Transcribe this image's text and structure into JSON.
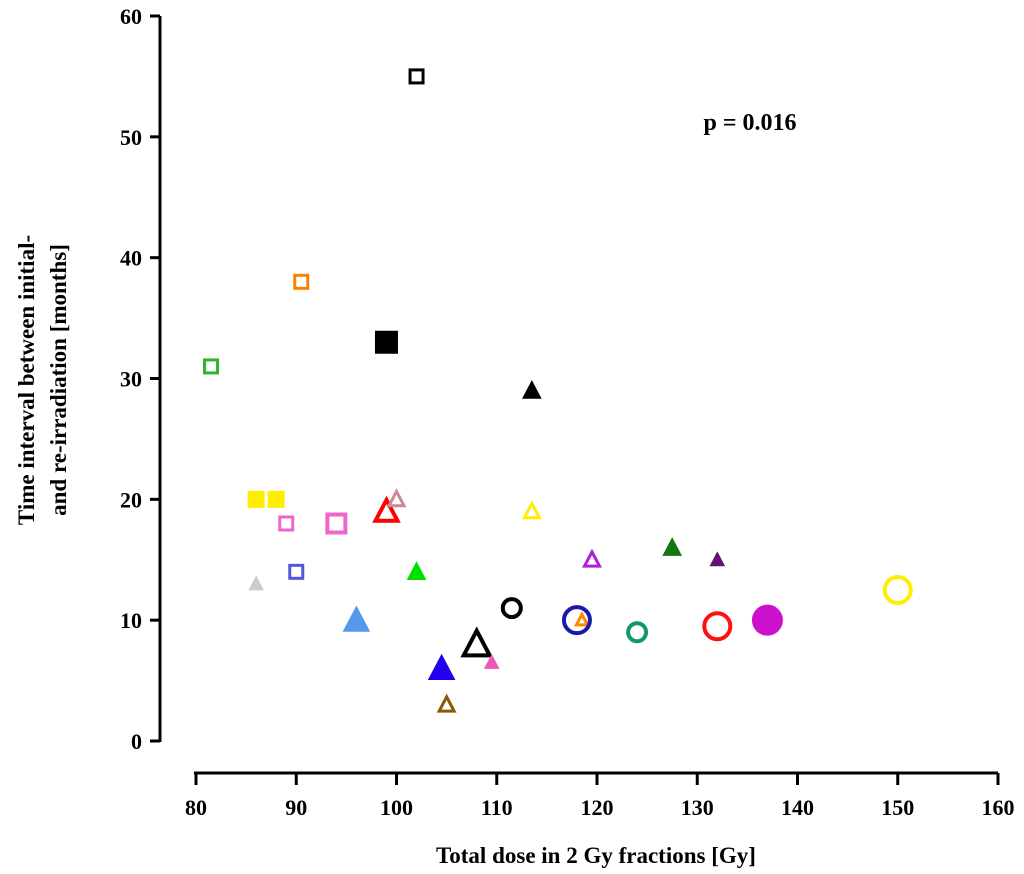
{
  "chart_data": {
    "type": "scatter",
    "title": "",
    "xlabel": "Total dose in 2 Gy fractions [Gy]",
    "ylabel_lines": [
      "Time interval between initial-",
      "and re-irradiation [months]"
    ],
    "xlim": [
      80,
      160
    ],
    "ylim": [
      0,
      60
    ],
    "x_ticks": [
      "80",
      "90",
      "100",
      "110",
      "120",
      "130",
      "140",
      "150",
      "160"
    ],
    "y_ticks": [
      "0",
      "10",
      "20",
      "30",
      "40",
      "50",
      "60"
    ],
    "grid": false,
    "legend": "none",
    "annotation": "p = 0.016",
    "points": [
      {
        "x": 102.0,
        "y": 55.0,
        "shape": "square",
        "fill": false,
        "color": "#000000",
        "size": "medium"
      },
      {
        "x": 90.5,
        "y": 38.0,
        "shape": "square",
        "fill": false,
        "color": "#ff7f00",
        "size": "medium"
      },
      {
        "x": 99.0,
        "y": 33.0,
        "shape": "square",
        "fill": true,
        "color": "#000000",
        "size": "large"
      },
      {
        "x": 81.5,
        "y": 31.0,
        "shape": "square",
        "fill": false,
        "color": "#2db52d",
        "size": "medium"
      },
      {
        "x": 86.0,
        "y": 20.0,
        "shape": "square",
        "fill": true,
        "color": "#ffee00",
        "size": "medium"
      },
      {
        "x": 88.0,
        "y": 20.0,
        "shape": "square",
        "fill": true,
        "color": "#ffee00",
        "size": "medium"
      },
      {
        "x": 89.0,
        "y": 18.0,
        "shape": "square",
        "fill": false,
        "color": "#ee66cc",
        "size": "medium"
      },
      {
        "x": 94.0,
        "y": 18.0,
        "shape": "square",
        "fill": false,
        "color": "#ee66cc",
        "size": "large"
      },
      {
        "x": 90.0,
        "y": 14.0,
        "shape": "square",
        "fill": false,
        "color": "#5555dd",
        "size": "medium"
      },
      {
        "x": 86.0,
        "y": 13.0,
        "shape": "triangle",
        "fill": true,
        "color": "#cccccc",
        "size": "small"
      },
      {
        "x": 96.0,
        "y": 10.0,
        "shape": "triangle",
        "fill": true,
        "color": "#5599ee",
        "size": "large"
      },
      {
        "x": 99.0,
        "y": 19.0,
        "shape": "triangle",
        "fill": false,
        "color": "#ff0000",
        "size": "large"
      },
      {
        "x": 100.0,
        "y": 20.0,
        "shape": "triangle",
        "fill": false,
        "color": "#cc8899",
        "size": "medium"
      },
      {
        "x": 102.0,
        "y": 14.0,
        "shape": "triangle",
        "fill": true,
        "color": "#00e000",
        "size": "medium"
      },
      {
        "x": 104.5,
        "y": 6.0,
        "shape": "triangle",
        "fill": true,
        "color": "#2200ee",
        "size": "large"
      },
      {
        "x": 105.0,
        "y": 3.0,
        "shape": "triangle",
        "fill": false,
        "color": "#8b5a00",
        "size": "medium"
      },
      {
        "x": 108.0,
        "y": 8.0,
        "shape": "triangle",
        "fill": false,
        "color": "#000000",
        "size": "xlarge"
      },
      {
        "x": 109.5,
        "y": 6.5,
        "shape": "triangle",
        "fill": true,
        "color": "#ee55bb",
        "size": "small"
      },
      {
        "x": 113.5,
        "y": 29.0,
        "shape": "triangle",
        "fill": true,
        "color": "#000000",
        "size": "medium"
      },
      {
        "x": 113.5,
        "y": 19.0,
        "shape": "triangle",
        "fill": false,
        "color": "#ffee00",
        "size": "medium"
      },
      {
        "x": 118.5,
        "y": 10.0,
        "shape": "triangle",
        "fill": false,
        "color": "#ff8800",
        "size": "small"
      },
      {
        "x": 119.5,
        "y": 15.0,
        "shape": "triangle",
        "fill": false,
        "color": "#aa22dd",
        "size": "medium"
      },
      {
        "x": 127.5,
        "y": 16.0,
        "shape": "triangle",
        "fill": true,
        "color": "#117711",
        "size": "medium"
      },
      {
        "x": 132.0,
        "y": 15.0,
        "shape": "triangle",
        "fill": true,
        "color": "#661177",
        "size": "small"
      },
      {
        "x": 111.5,
        "y": 11.0,
        "shape": "circle",
        "fill": false,
        "color": "#000000",
        "size": "medium"
      },
      {
        "x": 118.0,
        "y": 10.0,
        "shape": "circle",
        "fill": false,
        "color": "#1a1aaa",
        "size": "large"
      },
      {
        "x": 124.0,
        "y": 9.0,
        "shape": "circle",
        "fill": false,
        "color": "#119966",
        "size": "medium"
      },
      {
        "x": 132.0,
        "y": 9.5,
        "shape": "circle",
        "fill": false,
        "color": "#ff1111",
        "size": "large"
      },
      {
        "x": 137.0,
        "y": 10.0,
        "shape": "circle",
        "fill": true,
        "color": "#cc11cc",
        "size": "large"
      },
      {
        "x": 150.0,
        "y": 12.5,
        "shape": "circle",
        "fill": false,
        "color": "#ffee00",
        "size": "large"
      }
    ]
  }
}
